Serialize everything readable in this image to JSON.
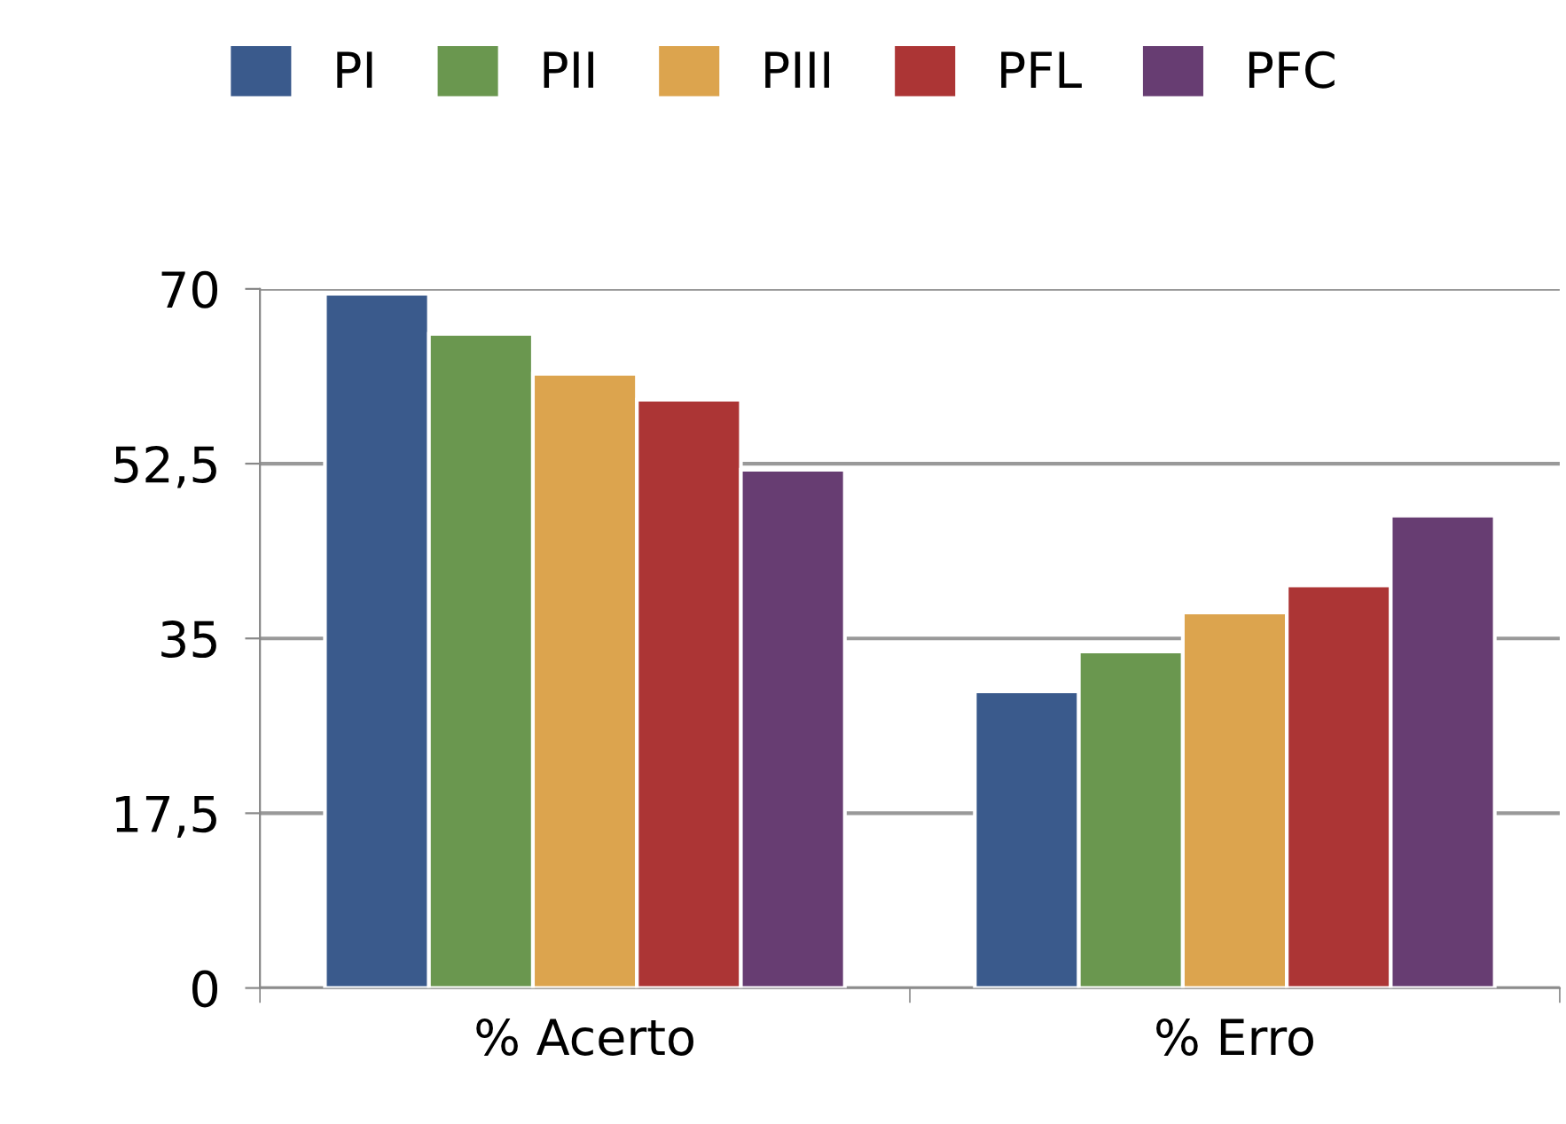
{
  "chart_data": {
    "type": "bar",
    "categories": [
      "% Acerto",
      "% Erro"
    ],
    "series": [
      {
        "name": "PI",
        "color": "#3a5a8c",
        "values": [
          69.5,
          29.7
        ]
      },
      {
        "name": "PII",
        "color": "#6a974f",
        "values": [
          65.5,
          33.7
        ]
      },
      {
        "name": "PIII",
        "color": "#dca44e",
        "values": [
          61.5,
          37.6
        ]
      },
      {
        "name": "PFL",
        "color": "#ac3535",
        "values": [
          58.9,
          40.3
        ]
      },
      {
        "name": "PFC",
        "color": "#673d72",
        "values": [
          51.9,
          47.3
        ]
      }
    ],
    "ylim": [
      0,
      70
    ],
    "yticks": [
      0,
      {
        "value": 17.5,
        "label": "17,5"
      },
      35,
      {
        "value": 52.5,
        "label": "52,5"
      },
      70
    ],
    "grid": "y",
    "legend": "top"
  }
}
